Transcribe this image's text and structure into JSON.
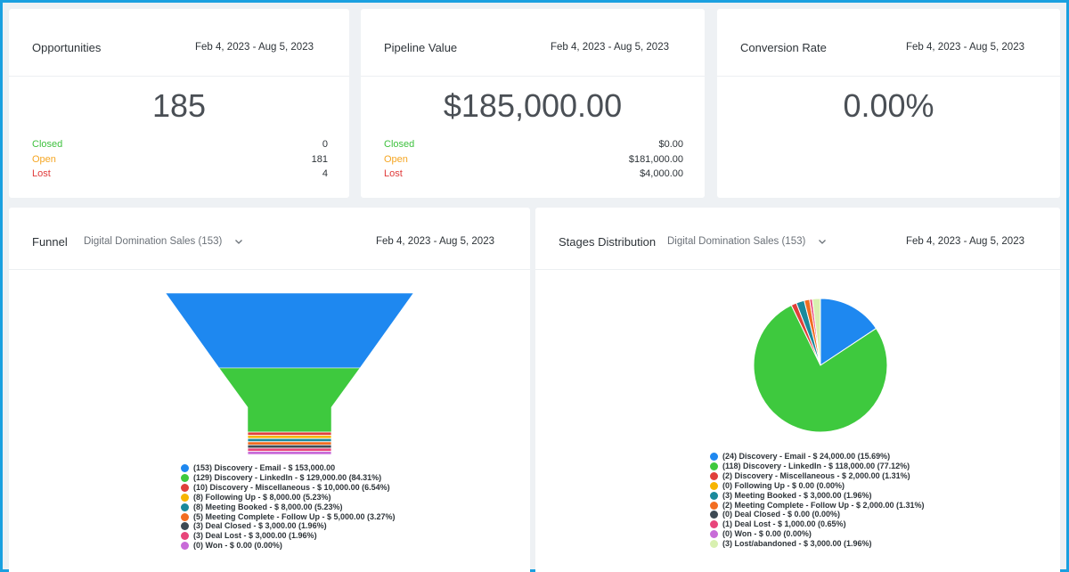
{
  "cards": {
    "opportunities": {
      "title": "Opportunities",
      "date": "Feb 4, 2023 - Aug 5, 2023",
      "value": "185",
      "stats": [
        {
          "label": "Closed",
          "value": "0"
        },
        {
          "label": "Open",
          "value": "181"
        },
        {
          "label": "Lost",
          "value": "4"
        }
      ]
    },
    "pipeline": {
      "title": "Pipeline Value",
      "date": "Feb 4, 2023 - Aug 5, 2023",
      "value": "$185,000.00",
      "stats": [
        {
          "label": "Closed",
          "value": "$0.00"
        },
        {
          "label": "Open",
          "value": "$181,000.00"
        },
        {
          "label": "Lost",
          "value": "$4,000.00"
        }
      ]
    },
    "conversion": {
      "title": "Conversion Rate",
      "date": "Feb 4, 2023 - Aug 5, 2023",
      "value": "0.00%"
    }
  },
  "funnel": {
    "title": "Funnel",
    "pipeline_select": "Digital Domination Sales (153)",
    "date": "Feb 4, 2023 - Aug 5, 2023",
    "legend": [
      "(153) Discovery - Email - $ 153,000.00",
      "(129) Discovery - LinkedIn - $ 129,000.00 (84.31%)",
      "(10) Discovery - Miscellaneous - $ 10,000.00 (6.54%)",
      "(8) Following Up - $ 8,000.00 (5.23%)",
      "(8) Meeting Booked - $ 8,000.00 (5.23%)",
      "(5) Meeting Complete - Follow Up - $ 5,000.00 (3.27%)",
      "(3) Deal Closed - $ 3,000.00 (1.96%)",
      "(3) Deal Lost - $ 3,000.00 (1.96%)",
      "(0) Won - $ 0.00 (0.00%)"
    ]
  },
  "stages": {
    "title": "Stages Distribution",
    "pipeline_select": "Digital Domination Sales (153)",
    "date": "Feb 4, 2023 - Aug 5, 2023",
    "legend": [
      "(24) Discovery - Email - $ 24,000.00 (15.69%)",
      "(118) Discovery - LinkedIn - $ 118,000.00 (77.12%)",
      "(2) Discovery - Miscellaneous - $ 2,000.00 (1.31%)",
      "(0) Following Up - $ 0.00 (0.00%)",
      "(3) Meeting Booked - $ 3,000.00 (1.96%)",
      "(2) Meeting Complete - Follow Up - $ 2,000.00 (1.31%)",
      "(0) Deal Closed - $ 0.00 (0.00%)",
      "(1) Deal Lost - $ 1,000.00 (0.65%)",
      "(0) Won - $ 0.00 (0.00%)",
      "(3) Lost/abandoned - $ 3,000.00 (1.96%)"
    ]
  },
  "colors": {
    "blue": "#1e88f0",
    "green": "#3ec93e",
    "red": "#e0403a",
    "yellow": "#f7b500",
    "teal": "#1a8a9c",
    "orange": "#f26d21",
    "dark": "#3d4a54",
    "pink": "#e8457a",
    "purple": "#c86bd8",
    "light_green": "#d8f0b0"
  },
  "chart_data": [
    {
      "type": "funnel",
      "categories": [
        "Discovery - Email",
        "Discovery - LinkedIn",
        "Discovery - Miscellaneous",
        "Following Up",
        "Meeting Booked",
        "Meeting Complete - Follow Up",
        "Deal Closed",
        "Deal Lost",
        "Won"
      ],
      "values": [
        153,
        129,
        10,
        8,
        8,
        5,
        3,
        3,
        0
      ],
      "colors": [
        "#1e88f0",
        "#3ec93e",
        "#e0403a",
        "#f7b500",
        "#1a8a9c",
        "#f26d21",
        "#3d4a54",
        "#e8457a",
        "#c86bd8"
      ]
    },
    {
      "type": "pie",
      "categories": [
        "Discovery - Email",
        "Discovery - LinkedIn",
        "Discovery - Miscellaneous",
        "Following Up",
        "Meeting Booked",
        "Meeting Complete - Follow Up",
        "Deal Closed",
        "Deal Lost",
        "Won",
        "Lost/abandoned"
      ],
      "values": [
        24,
        118,
        2,
        0,
        3,
        2,
        0,
        1,
        0,
        3
      ],
      "colors": [
        "#1e88f0",
        "#3ec93e",
        "#e0403a",
        "#f7b500",
        "#1a8a9c",
        "#f26d21",
        "#3d4a54",
        "#e8457a",
        "#c86bd8",
        "#d8f0b0"
      ]
    }
  ]
}
